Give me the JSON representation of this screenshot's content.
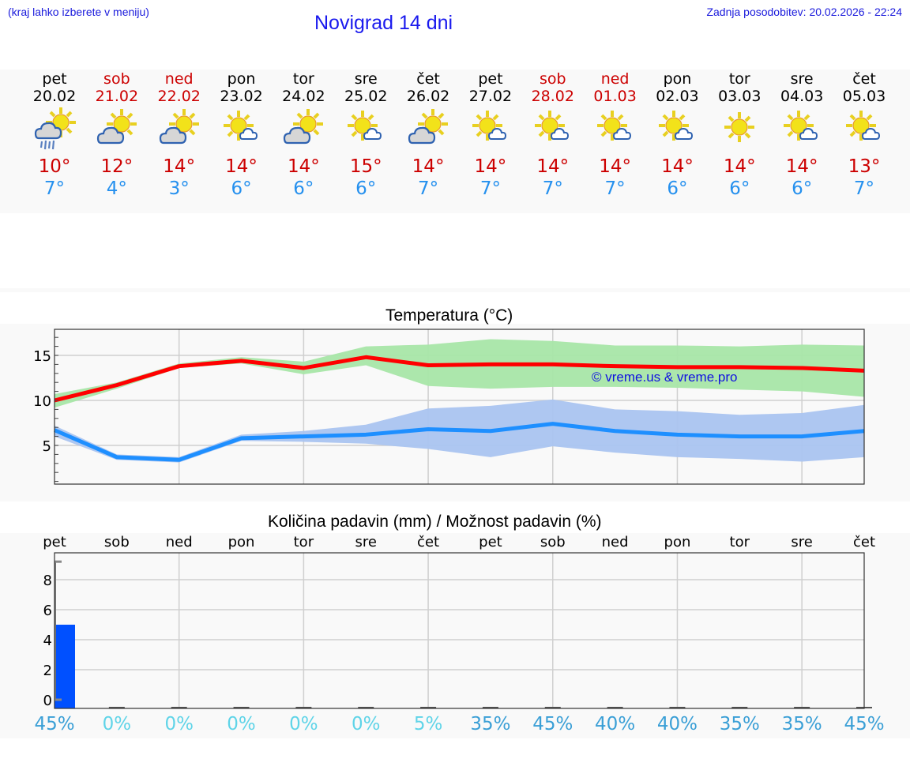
{
  "header": {
    "hint": "(kraj lahko izberete v meniju)",
    "title": "Novigrad 14 dni",
    "updated": "Zadnja posodobitev: 20.02.2026 - 22:24"
  },
  "colors": {
    "link_blue": "#1a1adc",
    "max_temp": "#cc0000",
    "min_temp": "#2590ee",
    "max_line": "#ff0000",
    "max_band": "#a8e6a8",
    "min_line": "#1e8fff",
    "min_band": "#aac4f0",
    "rain_bar": "#0050ff",
    "pct_low": "#5fd4e8",
    "pct_high": "#3a9fd6"
  },
  "days": [
    {
      "name": "pet",
      "date": "20.02",
      "weekend": false,
      "icon": "sun-cloud-rain-icon",
      "max": "10°",
      "min": "7°"
    },
    {
      "name": "sob",
      "date": "21.02",
      "weekend": true,
      "icon": "sun-behind-cloud-icon",
      "max": "12°",
      "min": "4°"
    },
    {
      "name": "ned",
      "date": "22.02",
      "weekend": true,
      "icon": "sun-behind-cloud-icon",
      "max": "14°",
      "min": "3°"
    },
    {
      "name": "pon",
      "date": "23.02",
      "weekend": false,
      "icon": "sun-small-cloud-icon",
      "max": "14°",
      "min": "6°"
    },
    {
      "name": "tor",
      "date": "24.02",
      "weekend": false,
      "icon": "sun-behind-cloud-icon",
      "max": "14°",
      "min": "6°"
    },
    {
      "name": "sre",
      "date": "25.02",
      "weekend": false,
      "icon": "sun-small-cloud-icon",
      "max": "15°",
      "min": "6°"
    },
    {
      "name": "čet",
      "date": "26.02",
      "weekend": false,
      "icon": "sun-behind-cloud-icon",
      "max": "14°",
      "min": "7°"
    },
    {
      "name": "pet",
      "date": "27.02",
      "weekend": false,
      "icon": "sun-small-cloud-icon",
      "max": "14°",
      "min": "7°"
    },
    {
      "name": "sob",
      "date": "28.02",
      "weekend": true,
      "icon": "sun-small-cloud-icon",
      "max": "14°",
      "min": "7°"
    },
    {
      "name": "ned",
      "date": "01.03",
      "weekend": true,
      "icon": "sun-small-cloud-icon",
      "max": "14°",
      "min": "7°"
    },
    {
      "name": "pon",
      "date": "02.03",
      "weekend": false,
      "icon": "sun-small-cloud-icon",
      "max": "14°",
      "min": "6°"
    },
    {
      "name": "tor",
      "date": "03.03",
      "weekend": false,
      "icon": "sun-icon",
      "max": "14°",
      "min": "6°"
    },
    {
      "name": "sre",
      "date": "04.03",
      "weekend": false,
      "icon": "sun-small-cloud-icon",
      "max": "14°",
      "min": "6°"
    },
    {
      "name": "čet",
      "date": "05.03",
      "weekend": false,
      "icon": "sun-small-cloud-icon",
      "max": "13°",
      "min": "7°"
    }
  ],
  "temperature_chart": {
    "title": "Temperatura (°C)",
    "watermark": "© vreme.us & vreme.pro",
    "y_ticks": [
      "15",
      "10",
      "5"
    ]
  },
  "rain_chart": {
    "title": "Količina padavin (mm) / Možnost padavin (%)",
    "y_ticks": [
      "8",
      "6",
      "4",
      "2",
      "0"
    ],
    "day_labels": [
      "pet",
      "sob",
      "ned",
      "pon",
      "tor",
      "sre",
      "čet",
      "pet",
      "sob",
      "ned",
      "pon",
      "tor",
      "sre",
      "čet"
    ],
    "probabilities": [
      "45%",
      "0%",
      "0%",
      "0%",
      "0%",
      "0%",
      "5%",
      "35%",
      "45%",
      "40%",
      "40%",
      "35%",
      "35%",
      "45%"
    ]
  },
  "chart_data": [
    {
      "type": "line",
      "title": "Temperatura (°C)",
      "xlabel": "",
      "ylabel": "°C",
      "x": [
        "20.02",
        "21.02",
        "22.02",
        "23.02",
        "24.02",
        "25.02",
        "26.02",
        "27.02",
        "28.02",
        "01.03",
        "02.03",
        "03.03",
        "04.03",
        "05.03"
      ],
      "ylim": [
        0.5,
        18
      ],
      "grid": true,
      "series": [
        {
          "name": "max",
          "color": "#ff0000",
          "values": [
            10.0,
            11.7,
            13.8,
            14.4,
            13.6,
            14.8,
            13.9,
            14.0,
            14.0,
            13.8,
            13.7,
            13.7,
            13.6,
            13.3
          ]
        },
        {
          "name": "max_upper",
          "values": [
            10.7,
            12.0,
            14.1,
            14.8,
            14.3,
            16.0,
            16.2,
            16.8,
            16.6,
            16.1,
            16.1,
            16.0,
            16.2,
            16.1
          ]
        },
        {
          "name": "max_lower",
          "values": [
            9.2,
            11.3,
            13.6,
            14.1,
            12.9,
            13.9,
            11.6,
            11.3,
            11.5,
            11.5,
            11.4,
            11.2,
            11.0,
            10.4
          ]
        },
        {
          "name": "min",
          "color": "#1e8fff",
          "values": [
            6.7,
            3.7,
            3.4,
            5.8,
            6.0,
            6.2,
            6.8,
            6.6,
            7.4,
            6.6,
            6.2,
            6.0,
            6.0,
            6.6
          ]
        },
        {
          "name": "min_upper",
          "values": [
            7.2,
            4.0,
            3.7,
            6.2,
            6.6,
            7.3,
            9.1,
            9.4,
            10.1,
            9.0,
            8.8,
            8.4,
            8.6,
            9.5
          ]
        },
        {
          "name": "min_lower",
          "values": [
            6.0,
            3.4,
            3.1,
            5.5,
            5.4,
            5.2,
            4.6,
            3.7,
            4.9,
            4.2,
            3.7,
            3.5,
            3.2,
            3.7
          ]
        }
      ]
    },
    {
      "type": "bar",
      "title": "Količina padavin (mm) / Možnost padavin (%)",
      "xlabel": "",
      "ylabel": "mm",
      "categories": [
        "pet",
        "sob",
        "ned",
        "pon",
        "tor",
        "sre",
        "čet",
        "pet",
        "sob",
        "ned",
        "pon",
        "tor",
        "sre",
        "čet"
      ],
      "ylim": [
        -0.5,
        9.5
      ],
      "grid": true,
      "series": [
        {
          "name": "precipitation_mm",
          "color": "#0050ff",
          "values": [
            5.0,
            0,
            0,
            0,
            0,
            0,
            0,
            0,
            0,
            0,
            0,
            0,
            0,
            0
          ]
        },
        {
          "name": "probability_pct",
          "values": [
            45,
            0,
            0,
            0,
            0,
            0,
            5,
            35,
            45,
            40,
            40,
            35,
            35,
            45
          ]
        }
      ]
    }
  ]
}
